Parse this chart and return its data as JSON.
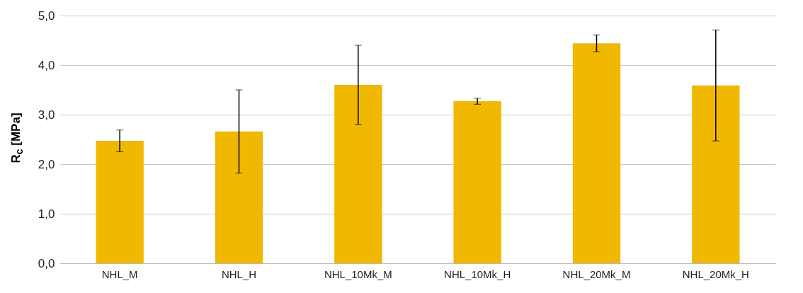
{
  "chart_data": {
    "type": "bar",
    "ylabel": "R$_{c}$ [MPa]",
    "categories": [
      "NHL_M",
      "NHL_H",
      "NHL_10Mk_M",
      "NHL_10Mk_H",
      "NHL_20Mk_M",
      "NHL_20Mk_H"
    ],
    "values": [
      2.47,
      2.66,
      3.6,
      3.27,
      4.44,
      3.59
    ],
    "errors": [
      0.22,
      0.84,
      0.8,
      0.06,
      0.17,
      1.12
    ],
    "color": "#f0b800",
    "ylim": [
      0,
      5
    ],
    "yticks": [
      {
        "value": 0,
        "label": "0,0"
      },
      {
        "value": 1,
        "label": "1,0"
      },
      {
        "value": 2,
        "label": "2,0"
      },
      {
        "value": 3,
        "label": "3,0"
      },
      {
        "value": 4,
        "label": "4,0"
      },
      {
        "value": 5,
        "label": "5,0"
      }
    ],
    "grid": "y"
  }
}
